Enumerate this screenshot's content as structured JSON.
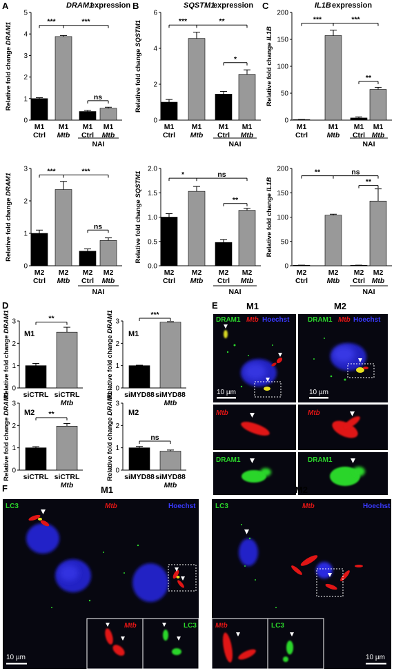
{
  "panels": [
    {
      "letter": "A",
      "title_italic": "DRAM1",
      "title_rest": " expression"
    },
    {
      "letter": "B",
      "title_italic": "SQSTM1",
      "title_rest": " expression"
    },
    {
      "letter": "C",
      "title_italic": "IL1B",
      "title_rest": " expression"
    },
    {
      "letter": "D",
      "title_italic": "",
      "title_rest": ""
    },
    {
      "letter": "E",
      "title_italic": "",
      "title_rest": ""
    },
    {
      "letter": "F",
      "title_italic": "",
      "title_rest": ""
    }
  ],
  "ylabel_prefix": "Relative fold change ",
  "nai_label": "NAI",
  "colors": {
    "black": "#000000",
    "gray": "#999999",
    "green": "#2bd52b",
    "red": "#e01515",
    "blue": "#2a2ad8",
    "micro_bg": "#0a0a14"
  },
  "microscopy": {
    "E_m1": "M1",
    "E_m2": "M2",
    "E_channels": [
      "DRAM1",
      "Mtb",
      "Hoechst"
    ],
    "scalebar": "10 µm",
    "F_m1": "M1",
    "F_m2": "M2",
    "F_channels": [
      "LC3",
      "Mtb",
      "Hoechst"
    ],
    "inset_mtb": "Mtb",
    "inset_dram1": "DRAM1",
    "inset_lc3": "LC3"
  },
  "chart_data": [
    {
      "id": "A_top",
      "type": "bar",
      "panel": "A",
      "gene": "DRAM1",
      "ylim": [
        0,
        5
      ],
      "yticks": [
        "0",
        "1",
        "2",
        "3",
        "4",
        "5"
      ],
      "categories": [
        [
          "M1",
          "Ctrl"
        ],
        [
          "M1",
          "Mtb"
        ],
        [
          "M1",
          "Ctrl"
        ],
        [
          "M1",
          "Mtb"
        ]
      ],
      "values": [
        1.0,
        3.88,
        0.4,
        0.55
      ],
      "errors": [
        0.04,
        0.05,
        0.05,
        0.05
      ],
      "colors": [
        "black",
        "gray",
        "black",
        "gray"
      ],
      "sig": [
        {
          "a": 0,
          "b": 1,
          "label": "***",
          "y": 4.4
        },
        {
          "a": 1,
          "b": 3,
          "label": "***",
          "y": 4.4
        },
        {
          "a": 2,
          "b": 3,
          "label": "ns",
          "y": 0.9
        }
      ]
    },
    {
      "id": "B_top",
      "type": "bar",
      "panel": "B",
      "gene": "SQSTM1",
      "ylim": [
        0,
        6
      ],
      "yticks": [
        "0",
        "2",
        "4",
        "6"
      ],
      "categories": [
        [
          "M1",
          "Ctrl"
        ],
        [
          "M1",
          "Mtb"
        ],
        [
          "M1",
          "Ctrl"
        ],
        [
          "M1",
          "Mtb"
        ]
      ],
      "values": [
        1.0,
        4.55,
        1.45,
        2.55
      ],
      "errors": [
        0.15,
        0.35,
        0.15,
        0.25
      ],
      "colors": [
        "black",
        "gray",
        "black",
        "gray"
      ],
      "sig": [
        {
          "a": 0,
          "b": 1,
          "label": "***",
          "y": 5.3
        },
        {
          "a": 1,
          "b": 3,
          "label": "**",
          "y": 5.3
        },
        {
          "a": 2,
          "b": 3,
          "label": "*",
          "y": 3.2
        }
      ]
    },
    {
      "id": "C_top",
      "type": "bar",
      "panel": "C",
      "gene": "IL1B",
      "ylim": [
        0,
        200
      ],
      "yticks": [
        "0",
        "50",
        "100",
        "150",
        "200"
      ],
      "categories": [
        [
          "M1",
          "Ctrl"
        ],
        [
          "M1",
          "Mtb"
        ],
        [
          "M1",
          "Ctrl"
        ],
        [
          "M1",
          "Mtb"
        ]
      ],
      "values": [
        1,
        157,
        4,
        57
      ],
      "errors": [
        0.3,
        10,
        2,
        4
      ],
      "colors": [
        "black",
        "gray",
        "black",
        "gray"
      ],
      "sig": [
        {
          "a": 0,
          "b": 1,
          "label": "***",
          "y": 180
        },
        {
          "a": 1,
          "b": 3,
          "label": "***",
          "y": 180
        },
        {
          "a": 2,
          "b": 3,
          "label": "**",
          "y": 72
        }
      ]
    },
    {
      "id": "A_bot",
      "type": "bar",
      "panel": "A",
      "gene": "DRAM1",
      "ylim": [
        0,
        3
      ],
      "yticks": [
        "0",
        "1",
        "2",
        "3"
      ],
      "categories": [
        [
          "M2",
          "Ctrl"
        ],
        [
          "M2",
          "Mtb"
        ],
        [
          "M2",
          "Ctrl"
        ],
        [
          "M2",
          "Mtb"
        ]
      ],
      "values": [
        1.0,
        2.35,
        0.45,
        0.78
      ],
      "errors": [
        0.1,
        0.25,
        0.07,
        0.08
      ],
      "colors": [
        "black",
        "gray",
        "black",
        "gray"
      ],
      "sig": [
        {
          "a": 0,
          "b": 1,
          "label": "***",
          "y": 2.8
        },
        {
          "a": 1,
          "b": 3,
          "label": "***",
          "y": 2.8
        },
        {
          "a": 2,
          "b": 3,
          "label": "ns",
          "y": 1.1
        }
      ]
    },
    {
      "id": "B_bot",
      "type": "bar",
      "panel": "B",
      "gene": "SQSTM1",
      "ylim": [
        0,
        2
      ],
      "yticks": [
        "0.0",
        "0.5",
        "1.0",
        "1.5",
        "2.0"
      ],
      "categories": [
        [
          "M2",
          "Ctrl"
        ],
        [
          "M2",
          "Mtb"
        ],
        [
          "M2",
          "Ctrl"
        ],
        [
          "M2",
          "Mtb"
        ]
      ],
      "values": [
        1.0,
        1.53,
        0.48,
        1.14
      ],
      "errors": [
        0.07,
        0.1,
        0.06,
        0.04
      ],
      "colors": [
        "black",
        "gray",
        "black",
        "gray"
      ],
      "sig": [
        {
          "a": 0,
          "b": 1,
          "label": "*",
          "y": 1.8
        },
        {
          "a": 1,
          "b": 3,
          "label": "ns",
          "y": 1.8
        },
        {
          "a": 2,
          "b": 3,
          "label": "**",
          "y": 1.28
        }
      ]
    },
    {
      "id": "C_bot",
      "type": "bar",
      "panel": "C",
      "gene": "IL1B",
      "ylim": [
        0,
        200
      ],
      "yticks": [
        "0",
        "50",
        "100",
        "150",
        "200"
      ],
      "categories": [
        [
          "M2",
          "Ctrl"
        ],
        [
          "M2",
          "Mtb"
        ],
        [
          "M2",
          "Ctrl"
        ],
        [
          "M2",
          "Mtb"
        ]
      ],
      "values": [
        1,
        104,
        1,
        133
      ],
      "errors": [
        0.3,
        2,
        0.3,
        25
      ],
      "colors": [
        "black",
        "gray",
        "black",
        "gray"
      ],
      "sig": [
        {
          "a": 0,
          "b": 1,
          "label": "**",
          "y": 185
        },
        {
          "a": 1,
          "b": 3,
          "label": "ns",
          "y": 185
        },
        {
          "a": 2,
          "b": 3,
          "label": "**",
          "y": 165
        }
      ]
    },
    {
      "id": "D_tl",
      "type": "bar",
      "panel": "D",
      "gene": "DRAM1",
      "group": "M1",
      "ylim": [
        0,
        3
      ],
      "yticks": [
        "0",
        "1",
        "2",
        "3"
      ],
      "categories": [
        [
          "siCTRL",
          ""
        ],
        [
          "siCTRL",
          "Mtb"
        ]
      ],
      "values": [
        1.0,
        2.5
      ],
      "errors": [
        0.1,
        0.22
      ],
      "colors": [
        "black",
        "gray"
      ],
      "sig": [
        {
          "a": 0,
          "b": 1,
          "label": "**",
          "y": 2.95
        }
      ]
    },
    {
      "id": "D_tr",
      "type": "bar",
      "panel": "D",
      "gene": "DRAM1",
      "group": "M1",
      "ylim": [
        0,
        3
      ],
      "yticks": [
        "0",
        "1",
        "2",
        "3"
      ],
      "categories": [
        [
          "siMYD88",
          ""
        ],
        [
          "siMYD88",
          "Mtb"
        ]
      ],
      "values": [
        1.0,
        2.95
      ],
      "errors": [
        0.02,
        0.02
      ],
      "colors": [
        "black",
        "gray"
      ],
      "sig": [
        {
          "a": 0,
          "b": 1,
          "label": "***",
          "y": 3.25
        }
      ]
    },
    {
      "id": "D_bl",
      "type": "bar",
      "panel": "D",
      "gene": "DRAM1",
      "group": "M2",
      "ylim": [
        0,
        3
      ],
      "yticks": [
        "0",
        "1",
        "2",
        "3"
      ],
      "categories": [
        [
          "siCTRL",
          ""
        ],
        [
          "siCTRL",
          "Mtb"
        ]
      ],
      "values": [
        1.0,
        1.97
      ],
      "errors": [
        0.05,
        0.12
      ],
      "colors": [
        "black",
        "gray"
      ],
      "sig": [
        {
          "a": 0,
          "b": 1,
          "label": "**",
          "y": 2.35
        }
      ]
    },
    {
      "id": "D_br",
      "type": "bar",
      "panel": "D",
      "gene": "DRAM1",
      "group": "M2",
      "ylim": [
        0,
        3
      ],
      "yticks": [
        "0",
        "1",
        "2",
        "3"
      ],
      "categories": [
        [
          "siMYD88",
          ""
        ],
        [
          "siMYD88",
          "Mtb"
        ]
      ],
      "values": [
        1.0,
        0.85
      ],
      "errors": [
        0.06,
        0.05
      ],
      "colors": [
        "black",
        "gray"
      ],
      "sig": [
        {
          "a": 0,
          "b": 1,
          "label": "ns",
          "y": 1.3
        }
      ]
    }
  ]
}
